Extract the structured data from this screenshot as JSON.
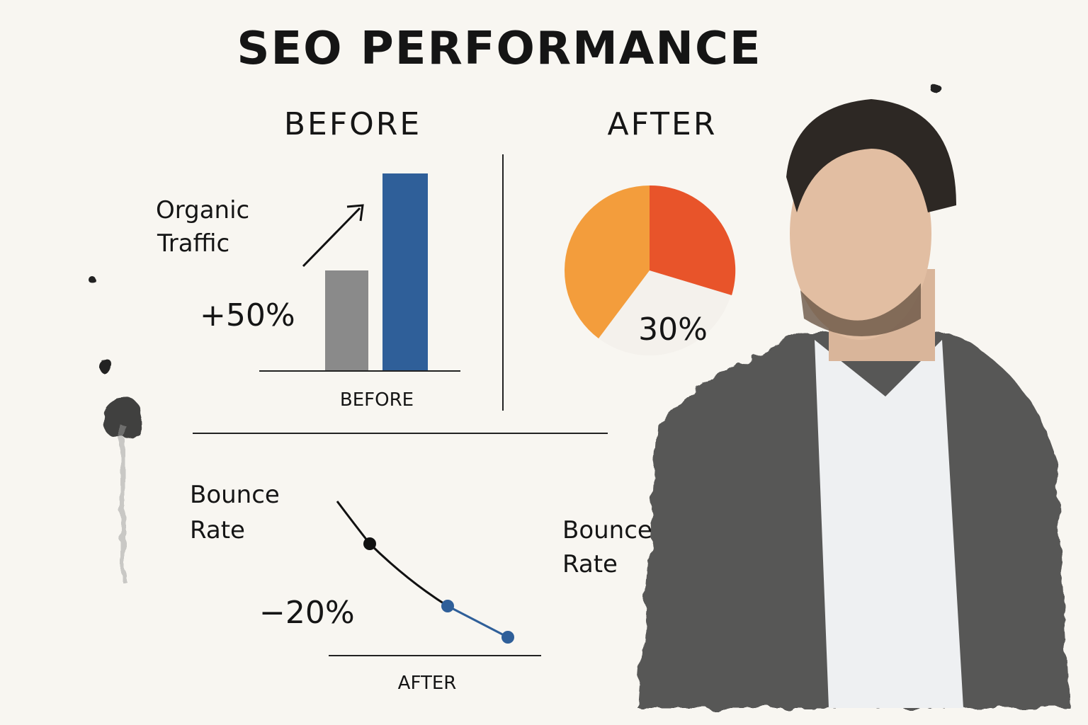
{
  "title": "SEO PERFORMANCE",
  "before": {
    "heading": "BEFORE",
    "metric": [
      "Organic",
      "Traffic"
    ],
    "change": "+50%",
    "axis_label": "BEFORE"
  },
  "after": {
    "heading": "AFTER",
    "share": "30%"
  },
  "bounce": {
    "metric": [
      "Bounce",
      "Rate"
    ],
    "change": "−20%",
    "axis_label": "AFTER"
  },
  "side_label": [
    "Bounce",
    "Rate"
  ]
}
